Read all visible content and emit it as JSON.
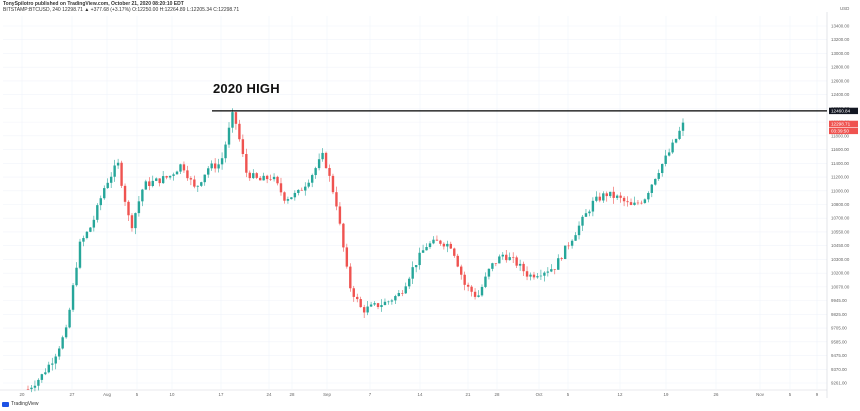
{
  "header": {
    "line1": "TonySpilotro published on TradingView.com, October 21, 2020 08:20:10 EDT",
    "line2": "BITSTAMP:BTCUSD, 240  12298.71 ▲ +377.68 (+3.17%)  O:12250.00  H:12264.89  L:12205.34  C:12298.71"
  },
  "footer": {
    "brand": "TradingView"
  },
  "colors": {
    "up": "#26a69a",
    "down": "#ef5350",
    "grid": "#f0f3fa",
    "resistance": "#000000",
    "badge_resistance": "#131722",
    "badge_price": "#ef5350"
  },
  "chart_data": {
    "type": "candlestick",
    "title": "",
    "annotation": "2020 HIGH",
    "currency_label": "USD",
    "horizontal_line": {
      "value": 12460.84,
      "label": "12460.84"
    },
    "price_badges": [
      {
        "label": "12298.71"
      },
      {
        "label": "03:39:50"
      }
    ],
    "ylim": [
      9240,
      13560
    ],
    "y_ticks": [
      "13400.00",
      "13200.00",
      "13000.00",
      "12800.00",
      "12600.00",
      "12400.00",
      "12200.00",
      "12000.00",
      "11800.00",
      "11600.00",
      "11400.00",
      "11200.00",
      "11000.00",
      "10800.00",
      "10700.00",
      "10550.00",
      "10450.00",
      "10300.00",
      "10200.00",
      "10070.00",
      "9945.00",
      "9825.00",
      "9705.00",
      "9585.00",
      "9475.00",
      "9370.00",
      "9261.00"
    ],
    "x_labels": [
      "20",
      "27",
      "Aug",
      "5",
      "10",
      "17",
      "24",
      "28",
      "Sep",
      "7",
      "14",
      "21",
      "28",
      "Oct",
      "5",
      "12",
      "19",
      "26",
      "Nov",
      "5",
      "9"
    ],
    "series": [
      {
        "date": "Jul 20",
        "close": 9240
      },
      {
        "date": "Jul 22",
        "close": 9380
      },
      {
        "date": "Jul 25",
        "close": 9600
      },
      {
        "date": "Jul 26",
        "close": 9920
      },
      {
        "date": "Jul 27",
        "close": 10900
      },
      {
        "date": "Jul 29",
        "close": 11150
      },
      {
        "date": "Jul 31",
        "close": 11600
      },
      {
        "date": "Aug 1",
        "close": 11850
      },
      {
        "date": "Aug 2",
        "close": 11100
      },
      {
        "date": "Aug 5",
        "close": 11600
      },
      {
        "date": "Aug 7",
        "close": 11650
      },
      {
        "date": "Aug 9",
        "close": 11700
      },
      {
        "date": "Aug 10",
        "close": 11850
      },
      {
        "date": "Aug 12",
        "close": 11550
      },
      {
        "date": "Aug 14",
        "close": 11800
      },
      {
        "date": "Aug 16",
        "close": 11850
      },
      {
        "date": "Aug 17",
        "close": 12450
      },
      {
        "date": "Aug 19",
        "close": 11750
      },
      {
        "date": "Aug 21",
        "close": 11650
      },
      {
        "date": "Aug 24",
        "close": 11700
      },
      {
        "date": "Aug 26",
        "close": 11450
      },
      {
        "date": "Aug 28",
        "close": 11500
      },
      {
        "date": "Aug 30",
        "close": 11700
      },
      {
        "date": "Sep 1",
        "close": 11950
      },
      {
        "date": "Sep 2",
        "close": 11400
      },
      {
        "date": "Sep 3",
        "close": 10450
      },
      {
        "date": "Sep 5",
        "close": 10150
      },
      {
        "date": "Sep 7",
        "close": 10200
      },
      {
        "date": "Sep 9",
        "close": 10250
      },
      {
        "date": "Sep 11",
        "close": 10350
      },
      {
        "date": "Sep 14",
        "close": 10650
      },
      {
        "date": "Sep 16",
        "close": 10900
      },
      {
        "date": "Sep 18",
        "close": 10950
      },
      {
        "date": "Sep 20",
        "close": 10900
      },
      {
        "date": "Sep 21",
        "close": 10450
      },
      {
        "date": "Sep 23",
        "close": 10300
      },
      {
        "date": "Sep 25",
        "close": 10650
      },
      {
        "date": "Sep 28",
        "close": 10800
      },
      {
        "date": "Sep 30",
        "close": 10700
      },
      {
        "date": "Oct 2",
        "close": 10550
      },
      {
        "date": "Oct 4",
        "close": 10600
      },
      {
        "date": "Oct 6",
        "close": 10650
      },
      {
        "date": "Oct 8",
        "close": 10900
      },
      {
        "date": "Oct 9",
        "close": 11150
      },
      {
        "date": "Oct 11",
        "close": 11400
      },
      {
        "date": "Oct 12",
        "close": 11500
      },
      {
        "date": "Oct 14",
        "close": 11450
      },
      {
        "date": "Oct 16",
        "close": 11350
      },
      {
        "date": "Oct 18",
        "close": 11450
      },
      {
        "date": "Oct 19",
        "close": 11750
      },
      {
        "date": "Oct 20",
        "close": 12000
      },
      {
        "date": "Oct 21",
        "close": 12299
      }
    ]
  }
}
